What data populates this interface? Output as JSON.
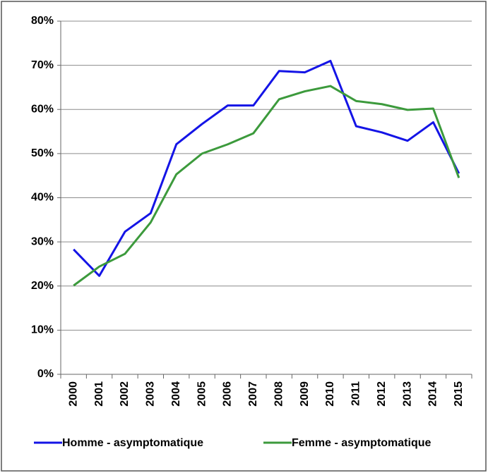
{
  "chart_data": {
    "type": "line",
    "categories": [
      "2000",
      "2001",
      "2002",
      "2003",
      "2004",
      "2005",
      "2006",
      "2007",
      "2008",
      "2009",
      "2010",
      "2011",
      "2012",
      "2013",
      "2014",
      "2015"
    ],
    "series": [
      {
        "name": "Homme - asymptomatique",
        "color": "#1414e6",
        "values": [
          28.3,
          22.3,
          32.3,
          36.5,
          52.1,
          56.7,
          60.9,
          60.9,
          68.7,
          68.4,
          71.0,
          56.2,
          54.8,
          52.9,
          57.1,
          45.5
        ]
      },
      {
        "name": "Femme - asymptomatique",
        "color": "#3c9a3c",
        "values": [
          20.1,
          24.4,
          27.3,
          34.4,
          45.3,
          50.0,
          52.1,
          54.6,
          62.3,
          64.1,
          65.3,
          61.9,
          61.2,
          59.9,
          60.2,
          44.5
        ]
      }
    ],
    "ylim": [
      0,
      80
    ],
    "yticks": [
      {
        "value": 0,
        "label": "0%"
      },
      {
        "value": 10,
        "label": "10%"
      },
      {
        "value": 20,
        "label": "20%"
      },
      {
        "value": 30,
        "label": "30%"
      },
      {
        "value": 40,
        "label": "40%"
      },
      {
        "value": 50,
        "label": "50%"
      },
      {
        "value": 60,
        "label": "60%"
      },
      {
        "value": 70,
        "label": "70%"
      },
      {
        "value": 80,
        "label": "80%"
      }
    ],
    "grid": true,
    "legend": "bottom"
  }
}
